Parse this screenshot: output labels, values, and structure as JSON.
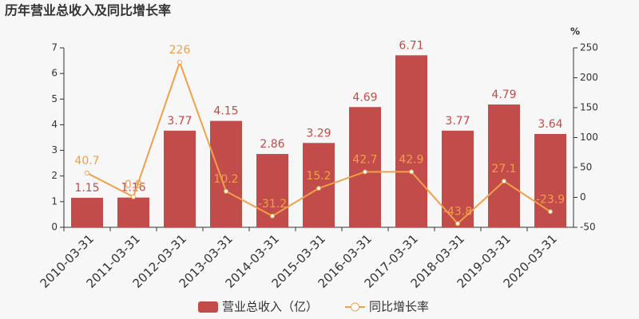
{
  "chart_data": {
    "type": "bar",
    "title": "历年营业总收入及同比增长率",
    "categories": [
      "2010-03-31",
      "2011-03-31",
      "2012-03-31",
      "2013-03-31",
      "2014-03-31",
      "2015-03-31",
      "2016-03-31",
      "2017-03-31",
      "2018-03-31",
      "2019-03-31",
      "2020-03-31"
    ],
    "series": [
      {
        "name": "营业总收入（亿）",
        "type": "bar",
        "color": "#c14c4a",
        "values": [
          1.15,
          1.16,
          3.77,
          4.15,
          2.86,
          3.29,
          4.69,
          6.71,
          3.77,
          4.79,
          3.64
        ]
      },
      {
        "name": "同比增长率",
        "type": "line",
        "axis": "y2",
        "color": "#f0a04b",
        "values": [
          40.7,
          0.9,
          226,
          10.2,
          -31.2,
          15.2,
          42.7,
          42.9,
          -43.8,
          27.1,
          -23.9
        ]
      }
    ],
    "ylim": [
      0,
      7
    ],
    "yticks": [
      0,
      1,
      2,
      3,
      4,
      5,
      6,
      7
    ],
    "y2lim": [
      -50,
      250
    ],
    "y2ticks": [
      -50,
      0,
      50,
      100,
      150,
      200,
      250
    ],
    "y2_unit": "%"
  }
}
